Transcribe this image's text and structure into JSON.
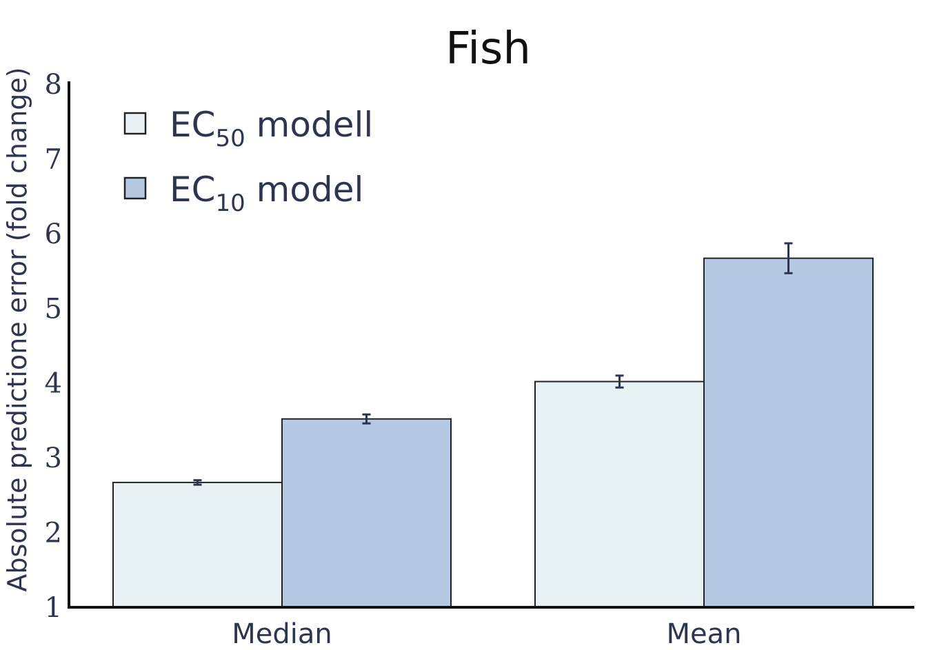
{
  "chart_data": {
    "type": "bar",
    "title": "Fish",
    "xlabel": "",
    "ylabel": "Absolute predictione error (fold change)",
    "ylim": [
      1,
      8
    ],
    "yticks": [
      "1",
      "2",
      "3",
      "4",
      "5",
      "6",
      "7",
      "8"
    ],
    "categories": [
      "Median",
      "Mean"
    ],
    "series": [
      {
        "name": "EC50 modell",
        "name_main": "EC",
        "name_sub": "50",
        "name_tail": " modell",
        "color": "#e8f1f4",
        "values": [
          2.67,
          4.02
        ],
        "errors": [
          0.03,
          0.08
        ]
      },
      {
        "name": "EC10 model",
        "name_main": "EC",
        "name_sub": "10",
        "name_tail": " model",
        "color": "#b5c9e2",
        "values": [
          3.52,
          5.67
        ],
        "errors": [
          0.06,
          0.2
        ]
      }
    ],
    "legend_position": "top-left",
    "grid": false,
    "error_bar_color": "#2e3550"
  }
}
